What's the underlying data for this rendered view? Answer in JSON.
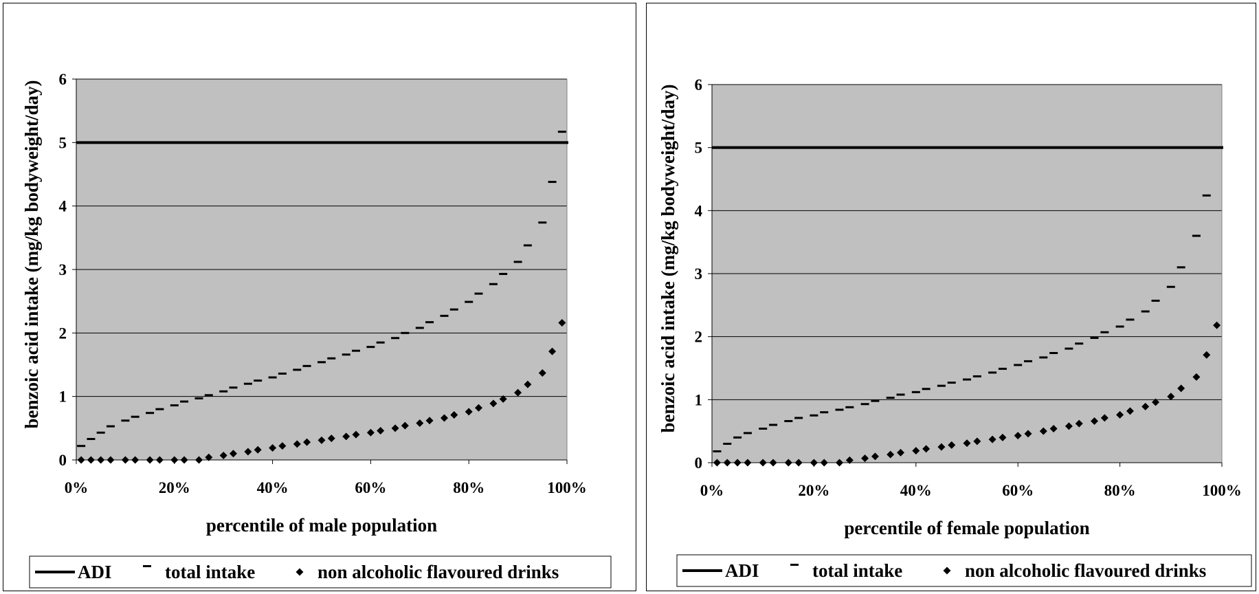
{
  "charts": [
    {
      "id": "male",
      "xlabel": "percentile of male population",
      "ylabel": "benzoic acid intake (mg/kg bodyweight/day)",
      "legend": [
        "ADI",
        "total intake",
        "non alcoholic flavoured drinks"
      ]
    },
    {
      "id": "female",
      "xlabel": "percentile of female population",
      "ylabel": "benzoic acid intake (mg/kg bodyweight/day)",
      "legend": [
        "ADI",
        "total intake",
        "non alcoholic flavoured drinks"
      ]
    }
  ],
  "colors": {
    "plot_bg": "#c0c0c0",
    "marks": "#000000",
    "grid": "#000000"
  },
  "chart_data": [
    {
      "type": "scatter",
      "title": "",
      "xlabel": "percentile of male population",
      "ylabel": "benzoic acid intake (mg/kg bodyweight/day)",
      "xlim": [
        0,
        100
      ],
      "ylim": [
        0,
        6
      ],
      "x_ticks": [
        "0%",
        "20%",
        "40%",
        "60%",
        "80%",
        "100%"
      ],
      "y_ticks": [
        0,
        1,
        2,
        3,
        4,
        5,
        6
      ],
      "grid": "horizontal",
      "legend_position": "bottom",
      "x": [
        1,
        3,
        5,
        7,
        10,
        12,
        15,
        17,
        20,
        22,
        25,
        27,
        30,
        32,
        35,
        37,
        40,
        42,
        45,
        47,
        50,
        52,
        55,
        57,
        60,
        62,
        65,
        67,
        70,
        72,
        75,
        77,
        80,
        82,
        85,
        87,
        90,
        92,
        95,
        97,
        99
      ],
      "series": [
        {
          "name": "ADI",
          "style": "line",
          "values": [
            5,
            5,
            5,
            5,
            5,
            5,
            5,
            5,
            5,
            5,
            5,
            5,
            5,
            5,
            5,
            5,
            5,
            5,
            5,
            5,
            5,
            5,
            5,
            5,
            5,
            5,
            5,
            5,
            5,
            5,
            5,
            5,
            5,
            5,
            5,
            5,
            5,
            5,
            5,
            5,
            5
          ]
        },
        {
          "name": "total intake",
          "style": "dash",
          "values": [
            0.22,
            0.33,
            0.43,
            0.53,
            0.62,
            0.68,
            0.74,
            0.8,
            0.86,
            0.92,
            0.97,
            1.02,
            1.08,
            1.14,
            1.2,
            1.25,
            1.3,
            1.36,
            1.42,
            1.48,
            1.54,
            1.6,
            1.66,
            1.72,
            1.78,
            1.85,
            1.92,
            2.0,
            2.08,
            2.17,
            2.27,
            2.37,
            2.49,
            2.62,
            2.77,
            2.93,
            3.12,
            3.38,
            3.74,
            4.38,
            5.17
          ]
        },
        {
          "name": "non alcoholic flavoured drinks",
          "style": "diamond",
          "values": [
            0,
            0,
            0,
            0,
            0,
            0,
            0,
            0,
            0,
            0,
            0,
            0.04,
            0.07,
            0.1,
            0.13,
            0.16,
            0.19,
            0.22,
            0.25,
            0.28,
            0.31,
            0.34,
            0.37,
            0.4,
            0.43,
            0.46,
            0.5,
            0.54,
            0.58,
            0.62,
            0.66,
            0.71,
            0.76,
            0.82,
            0.89,
            0.96,
            1.06,
            1.19,
            1.37,
            1.71,
            2.16
          ]
        }
      ]
    },
    {
      "type": "scatter",
      "title": "",
      "xlabel": "percentile of female population",
      "ylabel": "benzoic acid intake (mg/kg bodyweight/day)",
      "xlim": [
        0,
        100
      ],
      "ylim": [
        0,
        6
      ],
      "x_ticks": [
        "0%",
        "20%",
        "40%",
        "60%",
        "80%",
        "100%"
      ],
      "y_ticks": [
        0,
        1,
        2,
        3,
        4,
        5,
        6
      ],
      "grid": "horizontal",
      "legend_position": "bottom",
      "x": [
        1,
        3,
        5,
        7,
        10,
        12,
        15,
        17,
        20,
        22,
        25,
        27,
        30,
        32,
        35,
        37,
        40,
        42,
        45,
        47,
        50,
        52,
        55,
        57,
        60,
        62,
        65,
        67,
        70,
        72,
        75,
        77,
        80,
        82,
        85,
        87,
        90,
        92,
        95,
        97,
        99
      ],
      "series": [
        {
          "name": "ADI",
          "style": "line",
          "values": [
            5,
            5,
            5,
            5,
            5,
            5,
            5,
            5,
            5,
            5,
            5,
            5,
            5,
            5,
            5,
            5,
            5,
            5,
            5,
            5,
            5,
            5,
            5,
            5,
            5,
            5,
            5,
            5,
            5,
            5,
            5,
            5,
            5,
            5,
            5,
            5,
            5,
            5,
            5,
            5,
            5
          ]
        },
        {
          "name": "total intake",
          "style": "dash",
          "values": [
            0.18,
            0.3,
            0.4,
            0.47,
            0.54,
            0.6,
            0.66,
            0.71,
            0.75,
            0.8,
            0.84,
            0.88,
            0.93,
            0.98,
            1.03,
            1.08,
            1.12,
            1.17,
            1.22,
            1.27,
            1.32,
            1.37,
            1.43,
            1.49,
            1.55,
            1.61,
            1.67,
            1.74,
            1.81,
            1.89,
            1.98,
            2.07,
            2.16,
            2.27,
            2.4,
            2.57,
            2.79,
            3.1,
            3.6,
            4.24,
            5.0
          ]
        },
        {
          "name": "non alcoholic flavoured drinks",
          "style": "diamond",
          "values": [
            0,
            0,
            0,
            0,
            0,
            0,
            0,
            0,
            0,
            0,
            0,
            0.04,
            0.07,
            0.1,
            0.13,
            0.16,
            0.19,
            0.22,
            0.25,
            0.28,
            0.31,
            0.34,
            0.37,
            0.4,
            0.43,
            0.46,
            0.5,
            0.54,
            0.58,
            0.62,
            0.66,
            0.71,
            0.76,
            0.82,
            0.89,
            0.96,
            1.05,
            1.18,
            1.36,
            1.71,
            2.18
          ]
        }
      ]
    }
  ]
}
